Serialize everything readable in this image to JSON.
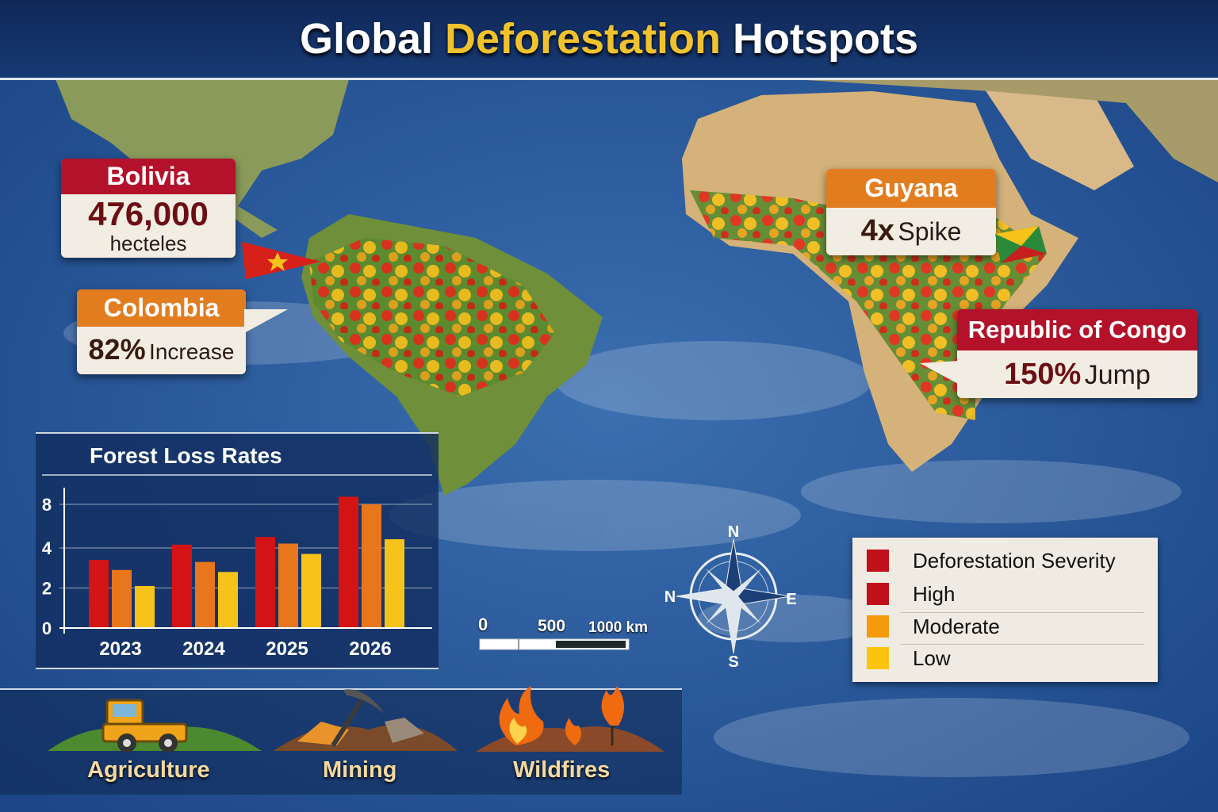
{
  "header": {
    "title_pre": "Global ",
    "title_highlight": "Deforestation",
    "title_post": " Hotspots"
  },
  "callouts": [
    {
      "country": "Bolivia",
      "value": "476,000",
      "unit": "hecteles"
    },
    {
      "country": "Colombia",
      "value": "82%",
      "unit": "Increase"
    },
    {
      "country": "Guyana",
      "value": "4x",
      "unit": "Spike"
    },
    {
      "country": "Republic of Congo",
      "value": "150%",
      "unit": "Jump"
    }
  ],
  "chart_data": {
    "type": "bar",
    "title": "Forest Loss Rates",
    "categories": [
      "2023",
      "2024",
      "2025",
      "2026"
    ],
    "series": [
      {
        "name": "High",
        "color": "#d41414",
        "values": [
          3.4,
          4.3,
          5.0,
          8.7
        ]
      },
      {
        "name": "Moderate",
        "color": "#e8761c",
        "values": [
          2.9,
          3.3,
          4.4,
          8.0
        ]
      },
      {
        "name": "Low",
        "color": "#f7c21a",
        "values": [
          2.1,
          2.8,
          3.7,
          4.8
        ]
      }
    ],
    "yticks": [
      0,
      2,
      4,
      8
    ],
    "ylim": [
      0,
      9
    ],
    "grid": true
  },
  "scale_bar": {
    "labels": [
      "0",
      "500",
      "1000 km"
    ]
  },
  "compass": {
    "n": "N",
    "w": "N",
    "e": "E",
    "s": "S"
  },
  "legend": {
    "title": "Deforestation Severity",
    "items": [
      {
        "label": "High",
        "color": "#c0101a"
      },
      {
        "label": "Moderate",
        "color": "#f59a0a"
      },
      {
        "label": "Low",
        "color": "#fcc40c"
      }
    ],
    "title_color": "#c0101a"
  },
  "drivers": [
    {
      "label": "Agriculture",
      "icon": "tractor-icon"
    },
    {
      "label": "Mining",
      "icon": "pickaxe-icon"
    },
    {
      "label": "Wildfires",
      "icon": "fire-icon"
    }
  ]
}
